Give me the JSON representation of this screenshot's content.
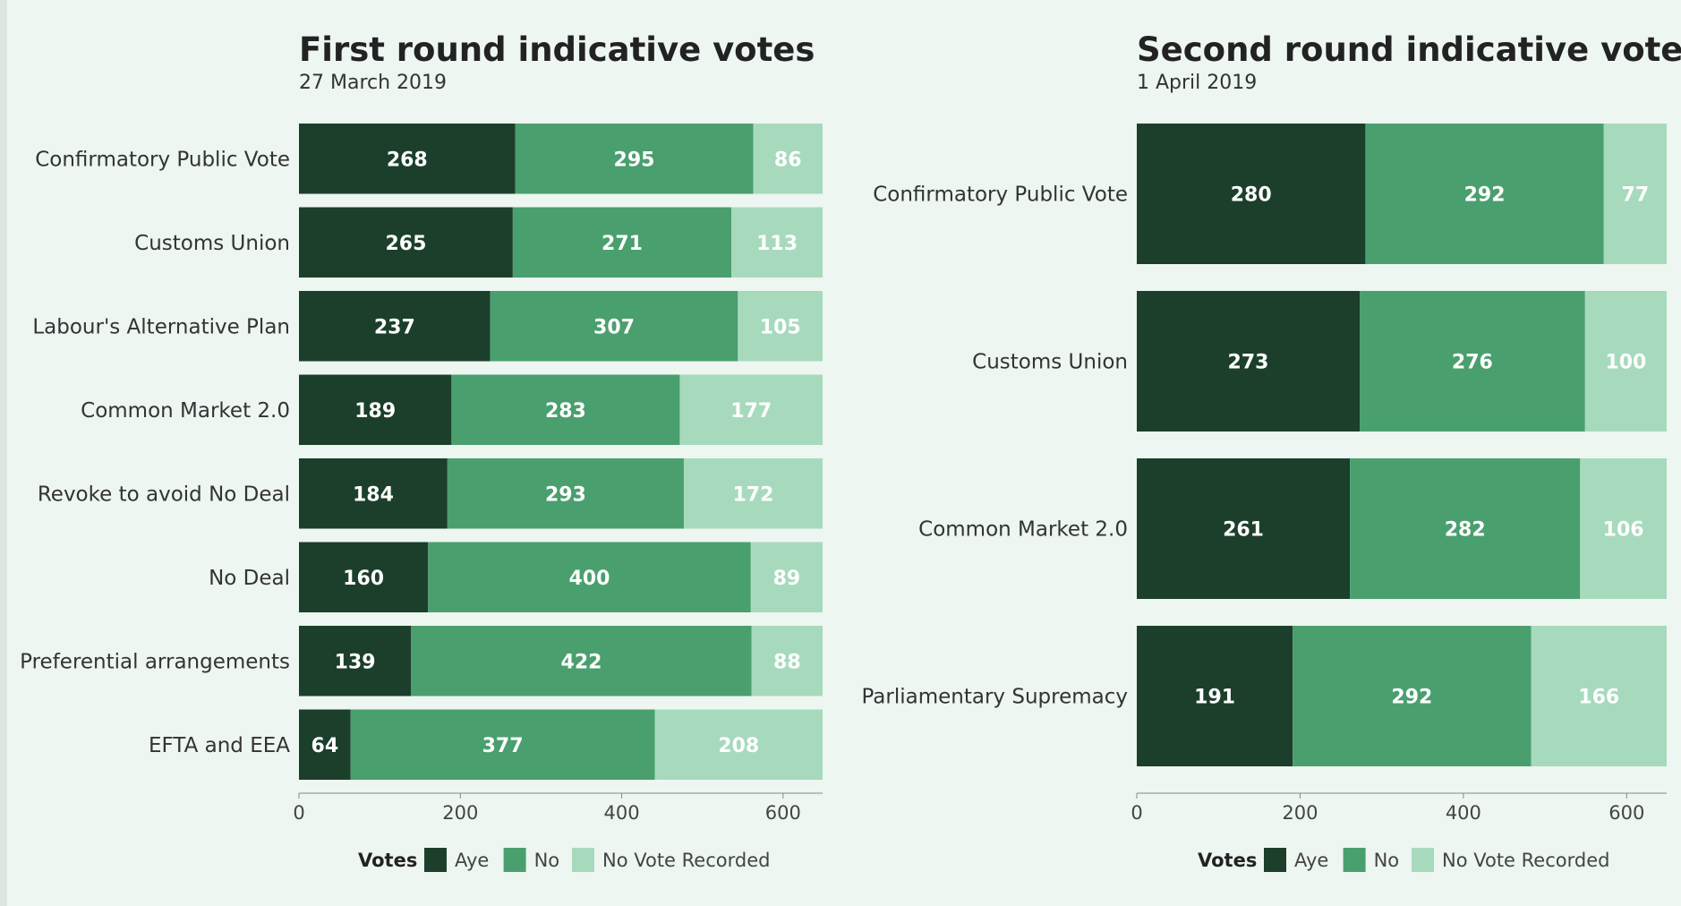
{
  "colors": {
    "aye": "#1b3f2b",
    "no": "#4a9f6e",
    "none": "#a7dabd",
    "background": "#edf6f0"
  },
  "legend": {
    "title": "Votes",
    "labels": [
      "Aye",
      "No",
      "No Vote Recorded"
    ]
  },
  "chart_data": [
    {
      "type": "bar",
      "orientation": "horizontal",
      "stacked": true,
      "title": "First round indicative votes",
      "subtitle": "27 March 2019",
      "categories": [
        "Confirmatory Public Vote",
        "Customs Union",
        "Labour's Alternative Plan",
        "Common Market 2.0",
        "Revoke to avoid No Deal",
        "No Deal",
        "Preferential arrangements",
        "EFTA and EEA"
      ],
      "series": [
        {
          "name": "Aye",
          "values": [
            268,
            265,
            237,
            189,
            184,
            160,
            139,
            64
          ]
        },
        {
          "name": "No",
          "values": [
            295,
            271,
            307,
            283,
            293,
            400,
            422,
            377
          ]
        },
        {
          "name": "No Vote Recorded",
          "values": [
            86,
            113,
            105,
            177,
            172,
            89,
            88,
            208
          ]
        }
      ],
      "xlim": [
        0,
        649
      ],
      "xticks": [
        0,
        200,
        400,
        600
      ],
      "legend_position": "bottom"
    },
    {
      "type": "bar",
      "orientation": "horizontal",
      "stacked": true,
      "title": "Second round indicative votes",
      "subtitle": "1 April 2019",
      "categories": [
        "Confirmatory Public Vote",
        "Customs Union",
        "Common Market 2.0",
        "Parliamentary Supremacy"
      ],
      "series": [
        {
          "name": "Aye",
          "values": [
            280,
            273,
            261,
            191
          ]
        },
        {
          "name": "No",
          "values": [
            292,
            276,
            282,
            292
          ]
        },
        {
          "name": "No Vote Recorded",
          "values": [
            77,
            100,
            106,
            166
          ]
        }
      ],
      "xlim": [
        0,
        649
      ],
      "xticks": [
        0,
        200,
        400,
        600
      ],
      "legend_position": "bottom"
    }
  ]
}
